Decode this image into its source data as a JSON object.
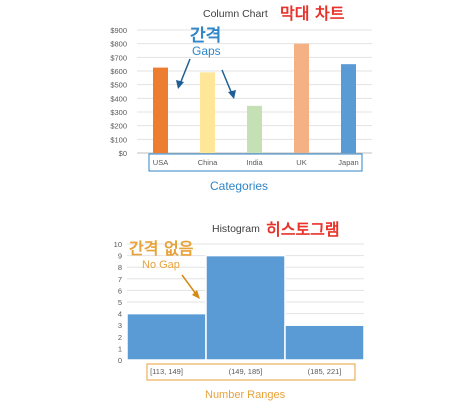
{
  "chart_data": [
    {
      "type": "bar",
      "title": "Column Chart",
      "title_korean": "막대 차트",
      "categories": [
        "USA",
        "China",
        "India",
        "UK",
        "Japan"
      ],
      "values": [
        625,
        590,
        345,
        800,
        650
      ],
      "colors": [
        "#ed7d31",
        "#ffe699",
        "#c5e0b4",
        "#f4b183",
        "#5b9bd5"
      ],
      "yticks": [
        "$0",
        "$100",
        "$200",
        "$300",
        "$400",
        "$500",
        "$600",
        "$700",
        "$800",
        "$900"
      ],
      "ylim": [
        0,
        900
      ],
      "grid": true,
      "annotation_korean": "간격",
      "annotation": "Gaps",
      "xlabel": "Categories"
    },
    {
      "type": "bar",
      "title": "Histogram",
      "title_korean": "히스토그램",
      "categories": [
        "[113, 149]",
        "(149, 185]",
        "(185, 221]"
      ],
      "values": [
        4,
        9,
        3
      ],
      "color": "#5b9bd5",
      "yticks": [
        "0",
        "1",
        "2",
        "3",
        "4",
        "5",
        "6",
        "7",
        "8",
        "9",
        "10"
      ],
      "ylim": [
        0,
        10
      ],
      "grid": true,
      "annotation_korean": "간격 없음",
      "annotation": "No Gap",
      "xlabel": "Number Ranges"
    }
  ]
}
